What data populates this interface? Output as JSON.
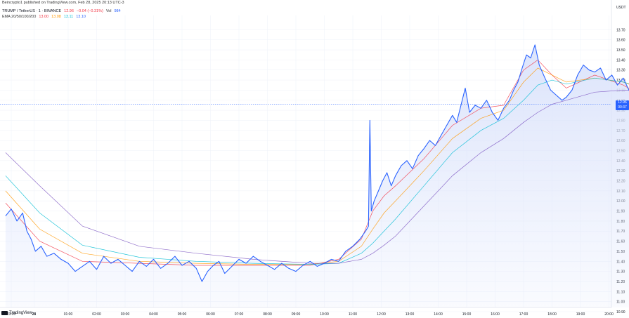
{
  "header": {
    "published": "Beincrypto1 published on TradingView.com, Feb 28, 2025 20:13 UTC-3",
    "symbol": "TRUMP / TetherUS · 1 · BINANCE",
    "last": "12.96",
    "change": "−0.04 (−0.31%)",
    "volume_label": "Vol",
    "volume": "984",
    "ema_label": "EMA 20/50/100/200",
    "ema_values": [
      "13.00",
      "13.08",
      "13.11",
      "13.10"
    ]
  },
  "axis": {
    "currency": "USDT",
    "last_price_badge": "12.96",
    "last_price_sub": "00:37"
  },
  "footer": {
    "brand": "TradingView"
  },
  "colors": {
    "price_line": "#2962ff",
    "area_fill": "#dbe3fb",
    "ema20": "#f23645",
    "ema50": "#ff9800",
    "ema100": "#00bcd4",
    "ema200": "#7e57c2",
    "grid": "#f0f3fa"
  },
  "chart_data": {
    "type": "line",
    "title": "TRUMP / TetherUS · 1 · BINANCE",
    "ylabel": "USDT",
    "ylim": [
      10.9,
      13.8
    ],
    "y_ticks": [
      "13.70",
      "13.60",
      "13.50",
      "13.40",
      "13.30",
      "13.20",
      "13.10",
      "13.00",
      "12.90",
      "12.80",
      "12.70",
      "12.60",
      "12.50",
      "12.40",
      "12.30",
      "12.20",
      "12.10",
      "12.00",
      "11.90",
      "11.80",
      "11.70",
      "11.60",
      "11.50",
      "11.40",
      "11.30",
      "11.20",
      "11.10",
      "11.00",
      "10.90"
    ],
    "x_ticks": [
      "23:00",
      "28",
      "01:00",
      "02:00",
      "03:00",
      "04:00",
      "05:00",
      "06:00",
      "07:00",
      "08:00",
      "09:00",
      "10:00",
      "11:00",
      "12:00",
      "13:00",
      "14:00",
      "15:00",
      "16:00",
      "17:00",
      "18:00",
      "19:00",
      "20:00"
    ],
    "x_range": [
      -1.7,
      20.95
    ],
    "series": [
      {
        "name": "TRUMP / TetherUS",
        "x": [
          -1.7,
          -1.5,
          -1.3,
          -1.1,
          -0.95,
          -0.8,
          -0.65,
          -0.45,
          -0.25,
          0.0,
          0.25,
          0.5,
          0.75,
          1.0,
          1.25,
          1.5,
          1.75,
          2.0,
          2.25,
          2.5,
          2.75,
          3.0,
          3.25,
          3.5,
          3.75,
          4.0,
          4.25,
          4.5,
          4.75,
          5.0,
          5.2,
          5.4,
          5.6,
          5.8,
          6.0,
          6.25,
          6.5,
          6.75,
          7.0,
          7.25,
          7.5,
          7.75,
          8.0,
          8.25,
          8.5,
          8.75,
          9.0,
          9.25,
          9.5,
          9.75,
          10.0,
          10.25,
          10.5,
          10.75,
          10.95,
          11.05,
          11.1,
          11.15,
          11.25,
          11.4,
          11.55,
          11.7,
          11.85,
          12.0,
          12.2,
          12.4,
          12.6,
          12.8,
          13.0,
          13.2,
          13.4,
          13.6,
          13.8,
          14.0,
          14.15,
          14.3,
          14.45,
          14.6,
          14.8,
          15.0,
          15.2,
          15.4,
          15.6,
          15.8,
          16.0,
          16.15,
          16.3,
          16.45,
          16.6,
          16.75,
          16.9,
          17.05,
          17.25,
          17.45,
          17.65,
          17.85,
          18.0,
          18.2,
          18.4,
          18.6,
          18.8,
          19.0,
          19.2,
          19.4,
          19.6,
          19.8,
          20.0,
          20.2,
          20.4,
          20.6,
          20.8,
          20.95
        ],
        "values": [
          11.85,
          11.92,
          11.8,
          11.88,
          11.7,
          11.62,
          11.5,
          11.55,
          11.45,
          11.48,
          11.42,
          11.38,
          11.3,
          11.35,
          11.4,
          11.32,
          11.45,
          11.38,
          11.42,
          11.36,
          11.3,
          11.4,
          11.35,
          11.42,
          11.33,
          11.38,
          11.45,
          11.36,
          11.4,
          11.33,
          11.2,
          11.3,
          11.36,
          11.4,
          11.28,
          11.35,
          11.42,
          11.38,
          11.45,
          11.4,
          11.36,
          11.32,
          11.38,
          11.33,
          11.3,
          11.36,
          11.4,
          11.35,
          11.38,
          11.42,
          11.4,
          11.5,
          11.55,
          11.62,
          11.7,
          11.75,
          12.8,
          11.9,
          12.0,
          12.1,
          12.2,
          12.28,
          12.15,
          12.25,
          12.35,
          12.4,
          12.32,
          12.45,
          12.52,
          12.6,
          12.55,
          12.65,
          12.75,
          12.85,
          12.78,
          12.95,
          13.12,
          12.88,
          12.95,
          12.92,
          13.0,
          12.88,
          12.8,
          12.92,
          13.0,
          13.1,
          13.18,
          13.32,
          13.45,
          13.42,
          13.55,
          13.35,
          13.22,
          13.1,
          13.05,
          13.0,
          13.03,
          13.1,
          13.25,
          13.35,
          13.3,
          13.28,
          13.32,
          13.2,
          13.25,
          13.15,
          13.22,
          13.1,
          13.0,
          12.98,
          13.02,
          12.96
        ]
      },
      {
        "name": "EMA 20",
        "x": [
          -1.7,
          -0.5,
          1.0,
          3.0,
          5.0,
          7.0,
          9.0,
          10.0,
          10.8,
          11.2,
          11.6,
          12.0,
          13.0,
          14.0,
          15.0,
          15.8,
          16.5,
          17.0,
          17.5,
          18.0,
          19.0,
          20.0,
          20.95
        ],
        "values": [
          11.98,
          11.6,
          11.4,
          11.38,
          11.36,
          11.36,
          11.36,
          11.42,
          11.62,
          11.9,
          12.05,
          12.15,
          12.42,
          12.75,
          12.92,
          12.95,
          13.3,
          13.4,
          13.25,
          13.12,
          13.25,
          13.15,
          13.0
        ]
      },
      {
        "name": "EMA 50",
        "x": [
          -1.7,
          -0.5,
          1.0,
          3.0,
          5.0,
          7.0,
          9.0,
          10.0,
          10.8,
          11.2,
          11.6,
          12.0,
          13.0,
          14.0,
          15.0,
          15.8,
          16.5,
          17.0,
          17.5,
          18.0,
          19.0,
          20.0,
          20.95
        ],
        "values": [
          12.1,
          11.72,
          11.48,
          11.4,
          11.38,
          11.37,
          11.37,
          11.4,
          11.55,
          11.72,
          11.88,
          12.0,
          12.3,
          12.62,
          12.82,
          12.9,
          13.18,
          13.32,
          13.25,
          13.18,
          13.22,
          13.18,
          13.08
        ]
      },
      {
        "name": "EMA 100",
        "x": [
          -1.7,
          -0.5,
          1.0,
          3.0,
          5.0,
          7.0,
          9.0,
          10.0,
          10.8,
          11.2,
          11.6,
          12.0,
          13.0,
          14.0,
          15.0,
          15.8,
          16.5,
          17.0,
          17.5,
          18.0,
          19.0,
          20.0,
          20.95
        ],
        "values": [
          12.25,
          11.88,
          11.56,
          11.44,
          11.4,
          11.38,
          11.37,
          11.38,
          11.48,
          11.58,
          11.7,
          11.82,
          12.15,
          12.48,
          12.7,
          12.82,
          13.0,
          13.15,
          13.2,
          13.16,
          13.22,
          13.18,
          13.11
        ]
      },
      {
        "name": "EMA 200",
        "x": [
          -1.7,
          -0.5,
          1.0,
          3.0,
          5.0,
          7.0,
          9.0,
          10.0,
          10.8,
          11.2,
          11.6,
          12.0,
          13.0,
          14.0,
          15.0,
          15.8,
          16.5,
          17.0,
          17.5,
          18.0,
          19.0,
          20.0,
          20.95
        ],
        "values": [
          12.48,
          12.15,
          11.75,
          11.55,
          11.48,
          11.42,
          11.38,
          11.38,
          11.42,
          11.48,
          11.56,
          11.65,
          11.95,
          12.25,
          12.48,
          12.62,
          12.78,
          12.88,
          12.96,
          13.0,
          13.08,
          13.1,
          13.1
        ]
      }
    ],
    "last_price_line": 12.96,
    "grid": true
  }
}
